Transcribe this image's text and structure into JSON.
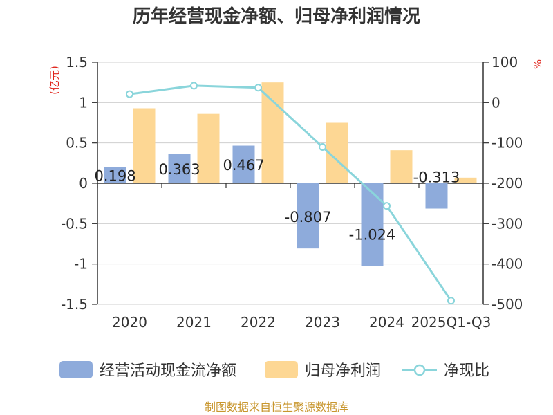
{
  "title": "历年经营现金净额、归母净利润情况",
  "source": "制图数据来自恒生聚源数据库",
  "chart_data": {
    "type": "bar",
    "categories": [
      "2020",
      "2021",
      "2022",
      "2023",
      "2024",
      "2025Q1-Q3"
    ],
    "series": [
      {
        "name": "经营活动现金流净额",
        "kind": "bar",
        "axis": "left",
        "color": "#8eabdb",
        "values": [
          0.198,
          0.363,
          0.467,
          -0.807,
          -1.024,
          -0.313
        ],
        "labels": [
          "0.198",
          "0.363",
          "0.467",
          "-0.807",
          "-1.024",
          "-0.313"
        ]
      },
      {
        "name": "归母净利润",
        "kind": "bar",
        "axis": "left",
        "color": "#fdd794",
        "values": [
          0.93,
          0.86,
          1.25,
          0.75,
          0.41,
          0.07
        ]
      },
      {
        "name": "净现比",
        "kind": "line",
        "axis": "right",
        "color": "#8ad5db",
        "values": [
          21,
          42,
          37,
          -110,
          -256,
          -491
        ]
      }
    ],
    "y_left": {
      "unit": "(亿元)",
      "min": -1.5,
      "max": 1.5,
      "step": 0.5,
      "ticks": [
        "1.5",
        "1",
        "0.5",
        "0",
        "-0.5",
        "-1",
        "-1.5"
      ]
    },
    "y_right": {
      "unit": "%",
      "min": -500,
      "max": 100,
      "step": 100,
      "ticks": [
        "100",
        "0",
        "-100",
        "-200",
        "-300",
        "-400",
        "-500"
      ]
    },
    "legend_position": "bottom"
  }
}
